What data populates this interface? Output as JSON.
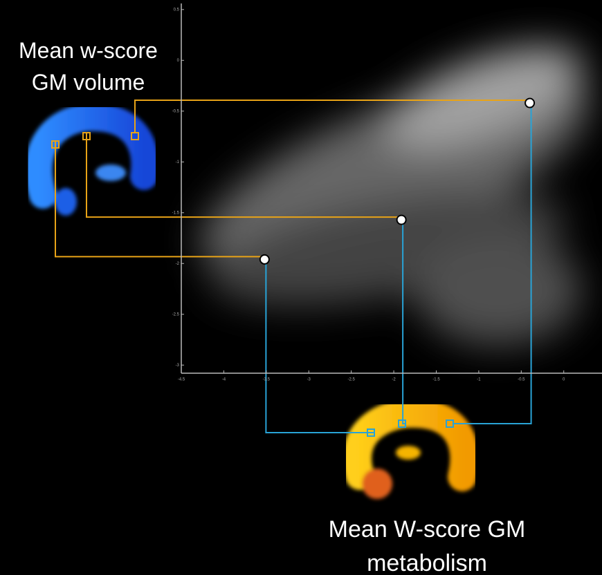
{
  "chart_data": {
    "type": "scatter",
    "annotations": [
      "Mean w-score GM volume",
      "Mean W-score GM metabolism"
    ],
    "x": [
      -0.4,
      -1.91,
      -3.52
    ],
    "values": [
      -0.42,
      -1.57,
      -1.96
    ],
    "color": "#ffffff",
    "xlim": [
      -4.5,
      0.45
    ],
    "ylim": [
      -3.08,
      0.56
    ],
    "xticks": [
      -4.5,
      -4,
      -3.5,
      -3,
      -2.5,
      -2,
      -1.5,
      -1,
      -0.5,
      0
    ],
    "yticks": [
      0.5,
      0,
      -0.5,
      -1,
      -1.5,
      -2,
      -2.5,
      -3
    ],
    "grid": false
  }
}
